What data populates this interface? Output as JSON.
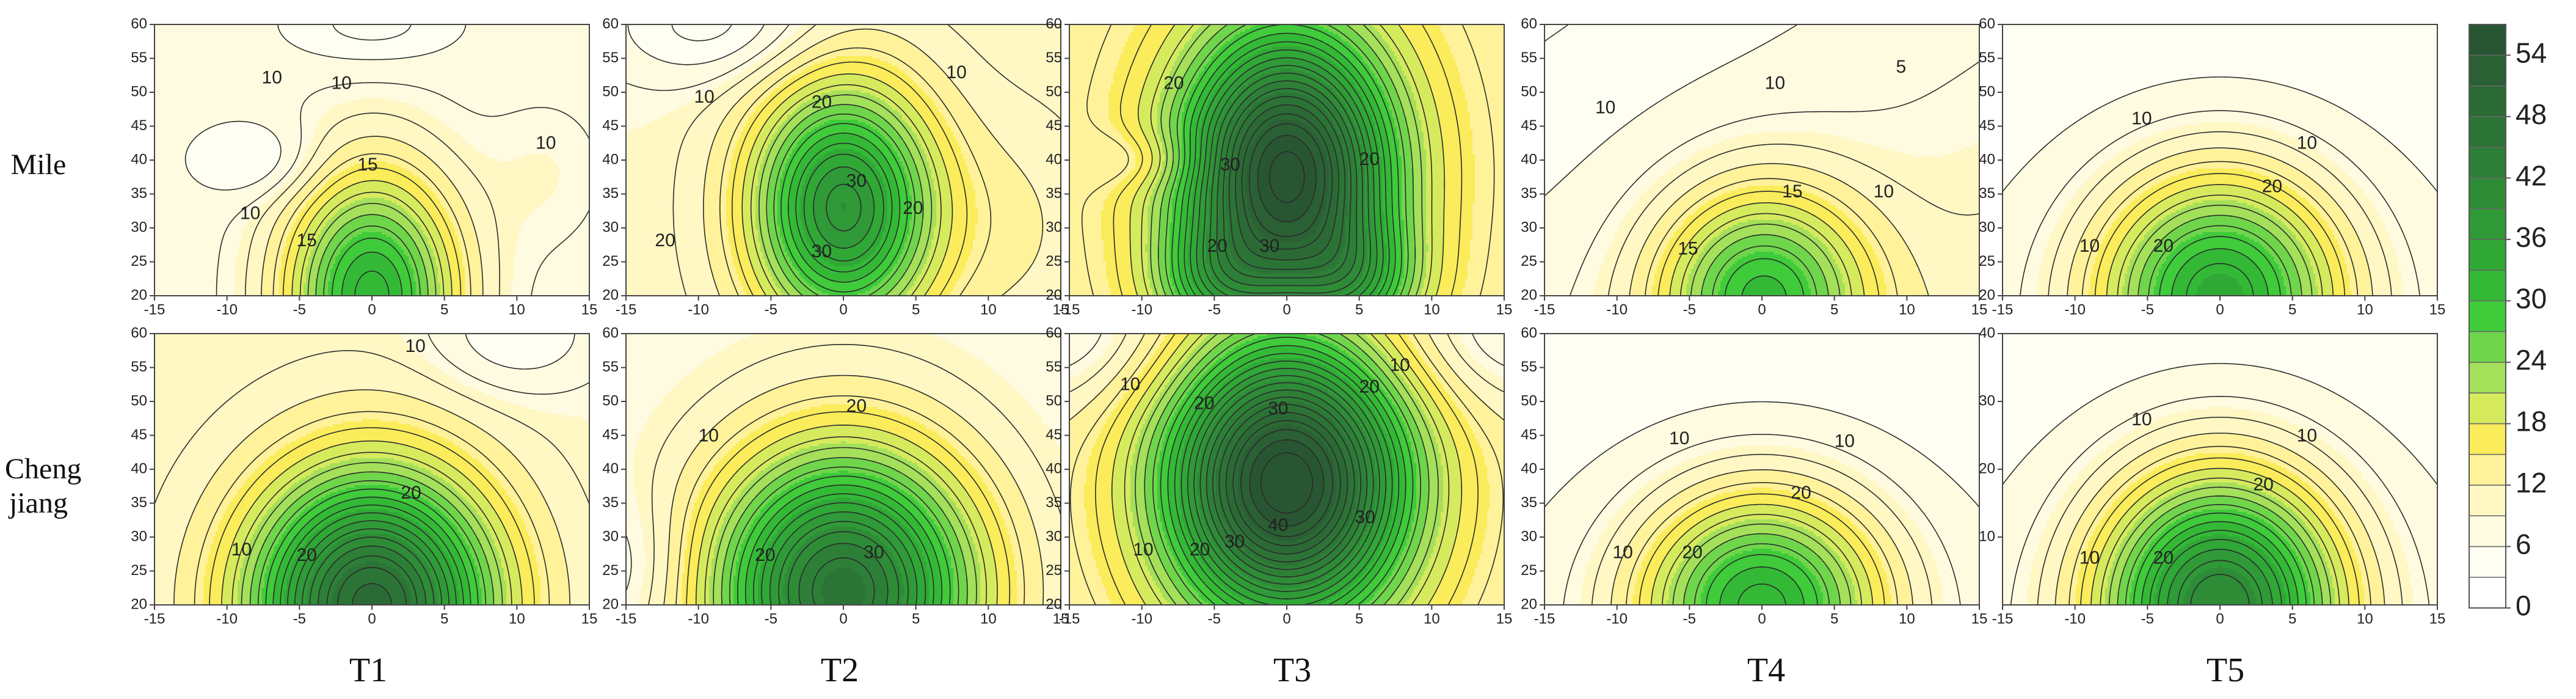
{
  "rows": [
    "Mile",
    "Cheng jiang"
  ],
  "columns": [
    "T1",
    "T2",
    "T3",
    "T4",
    "T5"
  ],
  "colorbar": {
    "lim": [
      0,
      57
    ],
    "ticks": [
      0,
      6,
      12,
      18,
      24,
      30,
      36,
      42,
      48,
      54
    ],
    "colors": [
      "#ffffff",
      "#fffef2",
      "#fffbe0",
      "#fff7c4",
      "#fff29a",
      "#faec5a",
      "#d6ea5e",
      "#a4e05a",
      "#6fd64b",
      "#3fcb3a",
      "#33b936",
      "#30a836",
      "#2f9a37",
      "#2e8c37",
      "#2d7f37",
      "#2c7436",
      "#2b6a35",
      "#2a6034",
      "#285633"
    ]
  },
  "chart_data": [
    {
      "type": "contour",
      "xlim": [
        -15,
        15
      ],
      "ylim": [
        20,
        60
      ],
      "xticks": [
        -15,
        -10,
        -5,
        0,
        5,
        10,
        15
      ],
      "yticks": [
        20,
        25,
        30,
        35,
        40,
        45,
        50,
        55,
        60
      ],
      "contour_labels": [
        10,
        10,
        15,
        10,
        10,
        15
      ]
    },
    {
      "type": "contour",
      "xlim": [
        -15,
        15
      ],
      "ylim": [
        20,
        60
      ],
      "xticks": [
        -15,
        -10,
        -5,
        0,
        5,
        10,
        15
      ],
      "yticks": [
        20,
        25,
        30,
        35,
        40,
        45,
        50,
        55,
        60
      ],
      "contour_labels": [
        10,
        10,
        20,
        30,
        20,
        20,
        30
      ]
    },
    {
      "type": "contour",
      "xlim": [
        -15,
        15
      ],
      "ylim": [
        20,
        60
      ],
      "xticks": [
        -15,
        -10,
        -5,
        0,
        5,
        10,
        15
      ],
      "yticks": [
        20,
        25,
        30,
        35,
        40,
        45,
        50,
        55,
        60
      ],
      "contour_labels": [
        20,
        30,
        20,
        30,
        20
      ]
    },
    {
      "type": "contour",
      "xlim": [
        -15,
        15
      ],
      "ylim": [
        20,
        60
      ],
      "xticks": [
        -15,
        -10,
        -5,
        0,
        5,
        10,
        15
      ],
      "yticks": [
        20,
        25,
        30,
        35,
        40,
        45,
        50,
        55,
        60
      ],
      "contour_labels": [
        10,
        10,
        5,
        15,
        10,
        15
      ]
    },
    {
      "type": "contour",
      "xlim": [
        -15,
        15
      ],
      "ylim": [
        20,
        60
      ],
      "xticks": [
        -15,
        -10,
        -5,
        0,
        5,
        10,
        15
      ],
      "yticks": [
        20,
        25,
        30,
        35,
        40,
        45,
        50,
        55,
        60
      ],
      "contour_labels": [
        10,
        10,
        20,
        10,
        20
      ]
    },
    {
      "type": "contour",
      "xlim": [
        -15,
        15
      ],
      "ylim": [
        20,
        60
      ],
      "xticks": [
        -15,
        -10,
        -5,
        0,
        5,
        10,
        15
      ],
      "yticks": [
        20,
        25,
        30,
        35,
        40,
        45,
        50,
        55,
        60
      ],
      "contour_labels": [
        10,
        20,
        10,
        20
      ]
    },
    {
      "type": "contour",
      "xlim": [
        -15,
        15
      ],
      "ylim": [
        20,
        60
      ],
      "xticks": [
        -15,
        -10,
        -5,
        0,
        5,
        10,
        15
      ],
      "yticks": [
        20,
        25,
        30,
        35,
        40,
        45,
        50,
        55,
        60
      ],
      "contour_labels": [
        10,
        20,
        30,
        20
      ]
    },
    {
      "type": "contour",
      "xlim": [
        -15,
        15
      ],
      "ylim": [
        20,
        60
      ],
      "xticks": [
        -15,
        -10,
        -5,
        0,
        5,
        10,
        15
      ],
      "yticks": [
        20,
        25,
        30,
        35,
        40,
        45,
        50,
        55,
        60
      ],
      "contour_labels": [
        10,
        20,
        10,
        20,
        30,
        30,
        40,
        20,
        30,
        10
      ]
    },
    {
      "type": "contour",
      "xlim": [
        -15,
        15
      ],
      "ylim": [
        20,
        60
      ],
      "xticks": [
        -15,
        -10,
        -5,
        0,
        5,
        10,
        15
      ],
      "yticks": [
        20,
        25,
        30,
        35,
        40,
        45,
        50,
        55,
        60
      ],
      "contour_labels": [
        10,
        10,
        20,
        10,
        20
      ]
    },
    {
      "type": "contour",
      "xlim": [
        -15,
        15
      ],
      "ylim": [
        0,
        40
      ],
      "xticks": [
        -15,
        -10,
        -5,
        0,
        5,
        10,
        15
      ],
      "yticks": [
        10,
        20,
        30,
        40
      ],
      "contour_labels": [
        10,
        10,
        20,
        10,
        20
      ]
    }
  ]
}
